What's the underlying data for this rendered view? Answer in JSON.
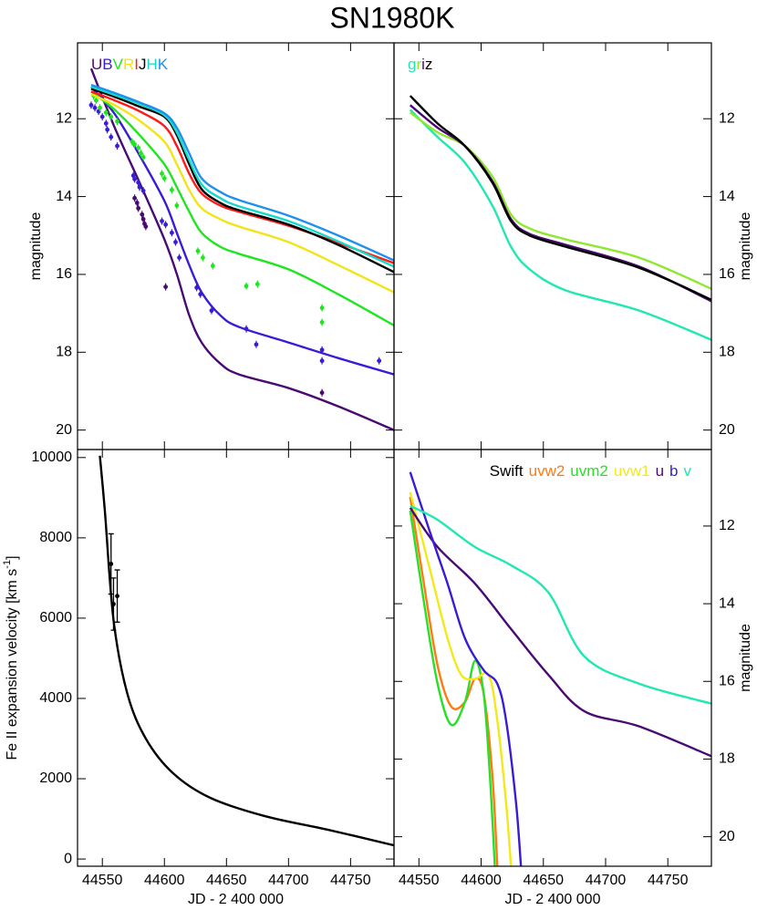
{
  "title": "SN1980K",
  "chart_data": [
    {
      "type": "line",
      "xlim": [
        44530,
        44785
      ],
      "ylim": [
        20.5,
        10.05
      ],
      "xticks": [
        44550,
        44600,
        44650,
        44700,
        44750
      ],
      "yticks": [
        12,
        14,
        16,
        18,
        20
      ],
      "ylabel": "magnitude",
      "legend": "upper left",
      "series": [
        {
          "name": "U",
          "color": "#4a0a73",
          "x": [
            44541,
            44560,
            44580,
            44600,
            44610,
            44620,
            44630,
            44645,
            44660,
            44700,
            44740,
            44785
          ],
          "values": [
            10.71,
            12.23,
            13.64,
            15.1,
            15.99,
            17.05,
            17.75,
            18.29,
            18.57,
            18.92,
            19.39,
            20.0
          ],
          "points": {
            "x": [
              44576,
              44578,
              44579,
              44582,
              44583,
              44584,
              44585,
              44601,
              44727
            ],
            "values": [
              14.04,
              14.16,
              14.3,
              14.46,
              14.58,
              14.7,
              14.77,
              16.32,
              19.04
            ]
          }
        },
        {
          "name": "B",
          "color": "#3a1cd6",
          "x": [
            44541,
            44560,
            44580,
            44600,
            44610,
            44620,
            44630,
            44645,
            44660,
            44700,
            44740,
            44785
          ],
          "values": [
            11.18,
            11.88,
            12.94,
            14.11,
            14.93,
            15.76,
            16.46,
            17.05,
            17.35,
            17.75,
            18.15,
            18.57
          ],
          "points": {
            "x": [
              44541,
              44544,
              44547,
              44550,
              44553,
              44554,
              44557,
              44562,
              44575,
              44576,
              44579,
              44580,
              44583,
              44598,
              44601,
              44606,
              44609,
              44612,
              44626,
              44629,
              44638,
              44666,
              44674,
              44727,
              44727,
              44773
            ],
            "values": [
              11.65,
              11.72,
              11.81,
              11.95,
              12.12,
              12.28,
              12.47,
              12.7,
              13.46,
              13.55,
              13.64,
              13.76,
              13.85,
              14.63,
              14.72,
              14.93,
              15.17,
              15.57,
              16.34,
              16.51,
              16.93,
              17.4,
              17.8,
              17.94,
              18.22,
              18.22
            ]
          }
        },
        {
          "name": "V",
          "color": "#1ee61e",
          "x": [
            44541,
            44560,
            44580,
            44600,
            44610,
            44620,
            44630,
            44645,
            44660,
            44700,
            44740,
            44785
          ],
          "values": [
            11.3,
            11.77,
            12.42,
            13.17,
            13.76,
            14.39,
            14.93,
            15.29,
            15.47,
            15.87,
            16.51,
            17.31
          ],
          "points": {
            "x": [
              44543,
              44545,
              44548,
              44553,
              44557,
              44562,
              44574,
              44576,
              44579,
              44581,
              44583,
              44598,
              44600,
              44606,
              44610,
              44627,
              44631,
              44639,
              44666,
              44675,
              44727,
              44727
            ],
            "values": [
              11.41,
              11.53,
              11.72,
              11.84,
              11.95,
              12.07,
              12.59,
              12.66,
              12.75,
              12.89,
              12.99,
              13.41,
              13.53,
              13.83,
              14.23,
              15.4,
              15.57,
              15.78,
              16.3,
              16.25,
              16.86,
              17.23
            ]
          }
        },
        {
          "name": "R",
          "color": "#f2e41a",
          "x": [
            44541,
            44560,
            44580,
            44600,
            44610,
            44620,
            44630,
            44645,
            44660,
            44700,
            44740,
            44785
          ],
          "values": [
            11.37,
            11.65,
            12.05,
            12.59,
            13.17,
            13.83,
            14.3,
            14.58,
            14.77,
            15.17,
            15.76,
            16.46
          ]
        },
        {
          "name": "I",
          "color": "#ff1a1a",
          "x": [
            44541,
            44560,
            44580,
            44600,
            44610,
            44620,
            44630,
            44645,
            44660,
            44700,
            44740,
            44785
          ],
          "values": [
            11.3,
            11.53,
            11.81,
            12.19,
            12.7,
            13.41,
            13.92,
            14.23,
            14.39,
            14.75,
            15.19,
            15.71
          ]
        },
        {
          "name": "J",
          "color": "#000000",
          "x": [
            44541,
            44560,
            44580,
            44600,
            44610,
            44620,
            44630,
            44645,
            44660,
            44700,
            44740,
            44785
          ],
          "values": [
            11.23,
            11.44,
            11.69,
            11.95,
            12.42,
            13.17,
            13.81,
            14.16,
            14.35,
            14.72,
            15.24,
            15.94
          ]
        },
        {
          "name": "H",
          "color": "#18d8c8",
          "x": [
            44541,
            44560,
            44580,
            44600,
            44610,
            44620,
            44630,
            44645,
            44660,
            44700,
            44740,
            44785
          ],
          "values": [
            11.18,
            11.39,
            11.62,
            11.91,
            12.35,
            13.06,
            13.69,
            14.04,
            14.25,
            14.63,
            15.15,
            15.8
          ]
        },
        {
          "name": "K",
          "color": "#1e90ee",
          "x": [
            44541,
            44560,
            44580,
            44600,
            44610,
            44620,
            44630,
            44645,
            44660,
            44700,
            44740,
            44785
          ],
          "values": [
            11.13,
            11.34,
            11.58,
            11.86,
            12.23,
            12.89,
            13.53,
            13.88,
            14.09,
            14.49,
            15.0,
            15.64
          ]
        }
      ]
    },
    {
      "type": "line",
      "xlim": [
        44530,
        44785
      ],
      "ylim": [
        20.5,
        10.05
      ],
      "xticks": [
        44550,
        44600,
        44650,
        44700,
        44750
      ],
      "yticks": [
        12,
        14,
        16,
        18,
        20
      ],
      "ylabel": "magnitude",
      "legend": "upper left",
      "series": [
        {
          "name": "g",
          "color": "#20e8b0",
          "x": [
            44543,
            44565,
            44587,
            44609,
            44624,
            44639,
            44668,
            44727,
            44785
          ],
          "values": [
            11.77,
            12.47,
            13.13,
            14.23,
            15.29,
            15.87,
            16.41,
            16.93,
            17.68
          ]
        },
        {
          "name": "r",
          "color": "#8ee830",
          "x": [
            44543,
            44565,
            44587,
            44609,
            44624,
            44639,
            44668,
            44727,
            44785
          ],
          "values": [
            11.84,
            12.35,
            12.7,
            13.48,
            14.46,
            14.82,
            15.1,
            15.57,
            16.37
          ]
        },
        {
          "name": "i",
          "color": "#4a0a73",
          "x": [
            44543,
            44565,
            44587,
            44609,
            44624,
            44639,
            44668,
            44727,
            44785
          ],
          "values": [
            11.65,
            12.23,
            12.7,
            13.6,
            14.58,
            14.96,
            15.24,
            15.8,
            16.69
          ]
        },
        {
          "name": "z",
          "color": "#000000",
          "x": [
            44543,
            44565,
            44587,
            44609,
            44624,
            44639,
            44668,
            44727,
            44785
          ],
          "values": [
            11.41,
            12.12,
            12.7,
            13.64,
            14.63,
            15.0,
            15.29,
            15.83,
            16.65
          ]
        }
      ]
    },
    {
      "type": "line",
      "xlim": [
        44530,
        44785
      ],
      "ylim": [
        -180,
        10200
      ],
      "xticks": [
        44550,
        44600,
        44650,
        44700,
        44750
      ],
      "yticks": [
        0,
        2000,
        4000,
        6000,
        8000,
        10000
      ],
      "xlabel": "JD - 2 400 000",
      "ylabel": "Fe II expansion velocity [km s",
      "ylabel_superscript": "-1",
      "ylabel_suffix": "]",
      "series": [
        {
          "color": "#000000",
          "x": [
            44548,
            44552,
            44559,
            44570,
            44585,
            44607,
            44637,
            44681,
            44732,
            44785
          ],
          "values": [
            10045,
            8682,
            5955,
            4136,
            3000,
            2136,
            1523,
            1068,
            727,
            341
          ],
          "points": {
            "x": [
              44557,
              44559,
              44562
            ],
            "values": [
              7350,
              6350,
              6550
            ],
            "errors": [
              750,
              650,
              650
            ]
          }
        }
      ]
    },
    {
      "type": "line",
      "xlim": [
        44530,
        44785
      ],
      "ylim": [
        20.76,
        10.03
      ],
      "xticks": [
        44550,
        44600,
        44650,
        44700,
        44750
      ],
      "yticks": [
        12,
        14,
        16,
        18,
        20
      ],
      "xlabel": "JD - 2 400 000",
      "ylabel": "magnitude",
      "legend": "upper right",
      "legend_title": "Swift",
      "series": [
        {
          "name": "uvw2",
          "color": "#ff7a10",
          "x": [
            44543,
            44554,
            44565,
            44576,
            44587,
            44595,
            44602,
            44609,
            44613
          ],
          "values": [
            11.25,
            13.48,
            15.59,
            16.65,
            16.53,
            15.94,
            16.3,
            18.41,
            20.76
          ]
        },
        {
          "name": "uvm2",
          "color": "#28e028",
          "x": [
            44543,
            44554,
            44565,
            44576,
            44587,
            44595,
            44602,
            44607,
            44611
          ],
          "values": [
            11.6,
            13.95,
            16.06,
            17.12,
            16.53,
            15.47,
            16.3,
            18.41,
            20.76
          ]
        },
        {
          "name": "uvw1",
          "color": "#f5e81a",
          "x": [
            44543,
            44558,
            44573,
            44584,
            44595,
            44606,
            44613,
            44620,
            44624
          ],
          "values": [
            11.13,
            13.01,
            14.89,
            15.83,
            15.94,
            15.83,
            17.0,
            19.11,
            20.76
          ]
        },
        {
          "name": "u",
          "color": "#4a0a73",
          "x": [
            44543,
            44565,
            44595,
            44624,
            44654,
            44683,
            44727,
            44786
          ],
          "values": [
            11.53,
            12.54,
            13.48,
            14.65,
            15.83,
            16.77,
            17.16,
            17.94
          ]
        },
        {
          "name": "b",
          "color": "#3a1cd6",
          "x": [
            44543,
            44558,
            44573,
            44587,
            44602,
            44613,
            44620,
            44628,
            44632
          ],
          "values": [
            10.61,
            12.07,
            13.48,
            14.89,
            15.71,
            16.06,
            17.0,
            19.11,
            20.76
          ]
        },
        {
          "name": "v",
          "color": "#20e8b0",
          "x": [
            44543,
            44565,
            44595,
            44624,
            44654,
            44683,
            44727,
            44786
          ],
          "values": [
            11.48,
            11.84,
            12.54,
            13.01,
            13.71,
            15.36,
            16.06,
            16.58
          ]
        }
      ]
    }
  ]
}
